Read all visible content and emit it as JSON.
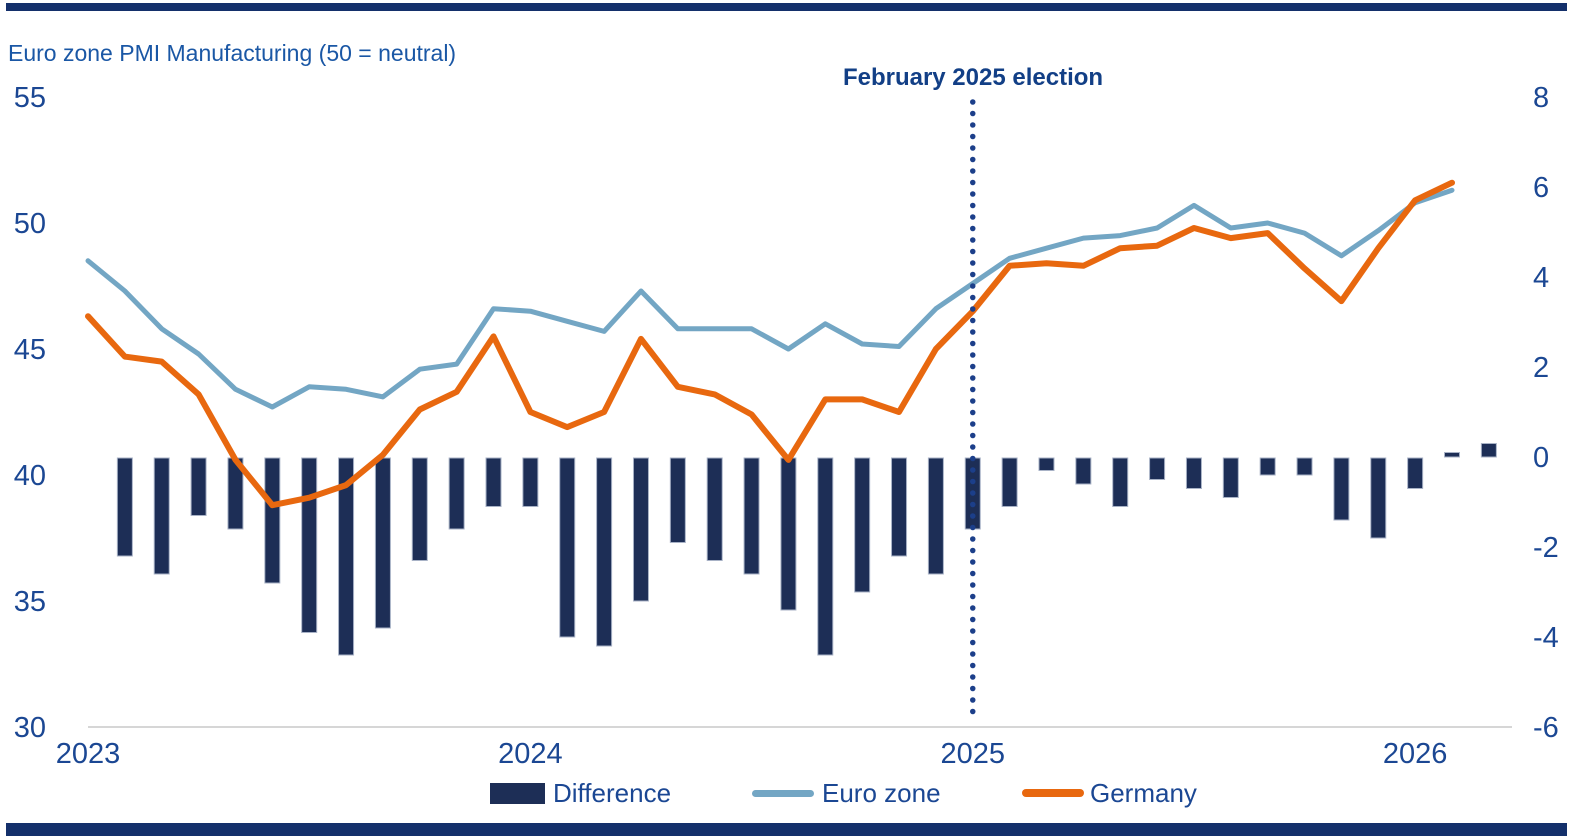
{
  "page": {
    "top_border": true,
    "bottom_border": true
  },
  "chart_data": {
    "type": "combo-bar-line",
    "title": "Euro zone PMI Manufacturing (50 = neutral)",
    "annotation": {
      "text": "February 2025 election",
      "at_month": "Feb 2025"
    },
    "months": [
      "Feb 2023",
      "Mar 2023",
      "Apr 2023",
      "May 2023",
      "Jun 2023",
      "Jul 2023",
      "Aug 2023",
      "Sep 2023",
      "Oct 2023",
      "Nov 2023",
      "Dec 2023",
      "Jan 2024",
      "Feb 2024",
      "Mar 2024",
      "Apr 2024",
      "May 2024",
      "Jun 2024",
      "Jul 2024",
      "Aug 2024",
      "Sep 2024",
      "Oct 2024",
      "Nov 2024",
      "Dec 2024",
      "Jan 2025",
      "Feb 2025",
      "Mar 2025",
      "Apr 2025",
      "May 2025",
      "Jun 2025",
      "Jul 2025",
      "Aug 2025",
      "Sep 2025",
      "Oct 2025",
      "Nov 2025",
      "Dec 2025",
      "Jan 2026",
      "Feb 2026",
      "Mar 2026"
    ],
    "series": [
      {
        "name": "Difference",
        "type": "bar",
        "axis": "right",
        "color": "#1d2e56",
        "border_color": "#a8b2c6",
        "values": [
          -2.2,
          -2.6,
          -1.3,
          -1.6,
          -2.8,
          -3.9,
          -4.4,
          -3.8,
          -2.3,
          -1.6,
          -1.1,
          -1.1,
          -4.0,
          -4.2,
          -3.2,
          -1.9,
          -2.3,
          -2.6,
          -3.4,
          -4.4,
          -3.0,
          -2.2,
          -2.6,
          -1.6,
          -1.1,
          -0.3,
          -0.6,
          -1.1,
          -0.5,
          -0.7,
          -0.9,
          -0.4,
          -0.4,
          -1.4,
          -1.8,
          -0.7,
          0.1,
          0.3
        ]
      },
      {
        "name": "Euro zone",
        "type": "line",
        "axis": "left",
        "color": "#73a6c4",
        "values": [
          48.5,
          47.3,
          45.8,
          44.8,
          43.4,
          42.7,
          43.5,
          43.4,
          43.1,
          44.2,
          44.4,
          46.6,
          46.5,
          46.1,
          45.7,
          47.3,
          45.8,
          45.8,
          45.8,
          45.0,
          46.0,
          45.2,
          45.1,
          46.6,
          47.6,
          48.6,
          49.0,
          49.4,
          49.5,
          49.8,
          50.7,
          49.8,
          50.0,
          49.6,
          48.7,
          49.7,
          50.8,
          51.3
        ]
      },
      {
        "name": "Germany",
        "type": "line",
        "axis": "left",
        "color": "#e8680f",
        "values": [
          46.3,
          44.7,
          44.5,
          43.2,
          40.6,
          38.8,
          39.1,
          39.6,
          40.8,
          42.6,
          43.3,
          45.5,
          42.5,
          41.9,
          42.5,
          45.4,
          43.5,
          43.2,
          42.4,
          40.6,
          43.0,
          43.0,
          42.5,
          45.0,
          46.5,
          48.3,
          48.4,
          48.3,
          49.0,
          49.1,
          49.8,
          49.4,
          49.6,
          48.2,
          46.9,
          49.0,
          50.9,
          51.6
        ]
      }
    ],
    "left_axis": {
      "ticks": [
        55,
        50,
        45,
        40,
        35,
        30
      ],
      "range": [
        30,
        55
      ]
    },
    "right_axis": {
      "ticks": [
        8,
        6,
        4,
        2,
        0,
        -2,
        -4,
        -6
      ],
      "range": [
        -6,
        8
      ]
    },
    "x_year_ticks": [
      {
        "label": "2023",
        "month_index": 0
      },
      {
        "label": "2024",
        "month_index": 12
      },
      {
        "label": "2025",
        "month_index": 24
      },
      {
        "label": "2026",
        "month_index": 36
      }
    ],
    "legend": [
      "Difference",
      "Euro zone",
      "Germany"
    ],
    "grid": "single baseline at left-axis 30",
    "legend_position": "bottom-center",
    "election_line_color": "#1c3f8a",
    "bar_x_offset_months": 1
  }
}
